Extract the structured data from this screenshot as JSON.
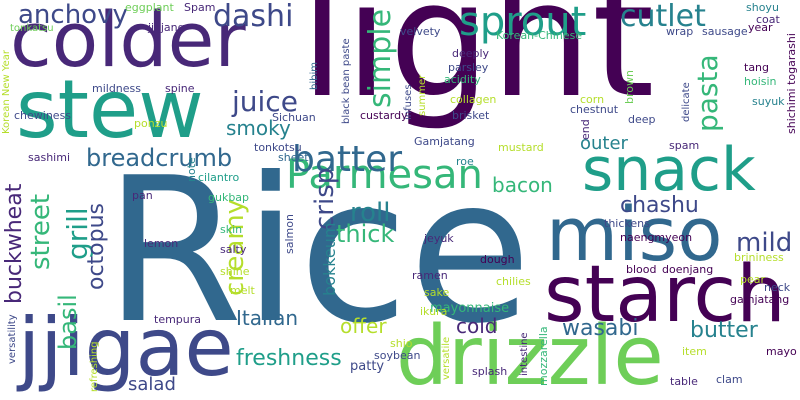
{
  "palette": {
    "purple_dark": "#440154",
    "indigo": "#482878",
    "blue": "#3e4989",
    "steel": "#31688e",
    "teal": "#26828e",
    "teal_green": "#1f9e89",
    "green": "#35b779",
    "lime": "#6ece58",
    "yellow_green": "#b5de2b",
    "yellow": "#fde725"
  },
  "words": [
    {
      "text": "Rice",
      "color": "#31688e"
    },
    {
      "text": "light",
      "color": "#440154"
    },
    {
      "text": "colder",
      "color": "#482878"
    },
    {
      "text": "stew",
      "color": "#1f9e89"
    },
    {
      "text": "jjigae",
      "color": "#3e4989"
    },
    {
      "text": "drizzle",
      "color": "#6ece58"
    },
    {
      "text": "starch",
      "color": "#440154"
    },
    {
      "text": "miso",
      "color": "#31688e"
    },
    {
      "text": "snack",
      "color": "#1f9e89"
    },
    {
      "text": "Parmesan",
      "color": "#35b779"
    },
    {
      "text": "sprout",
      "color": "#1f9e89"
    },
    {
      "text": "batter",
      "color": "#31688e"
    },
    {
      "text": "anchovy",
      "color": "#3e4989"
    },
    {
      "text": "dashi",
      "color": "#3e4989"
    },
    {
      "text": "cutlet",
      "color": "#26828e"
    },
    {
      "text": "breadcrumb",
      "color": "#31688e"
    },
    {
      "text": "juice",
      "color": "#3e4989"
    },
    {
      "text": "simple",
      "color": "#35b779"
    },
    {
      "text": "pasta",
      "color": "#35b779"
    },
    {
      "text": "smoky",
      "color": "#26828e"
    },
    {
      "text": "grill",
      "color": "#1f9e89"
    },
    {
      "text": "street",
      "color": "#35b779"
    },
    {
      "text": "buckwheat",
      "color": "#482878"
    },
    {
      "text": "basil",
      "color": "#35b779"
    },
    {
      "text": "octopus",
      "color": "#3e4989"
    },
    {
      "text": "creamy",
      "color": "#b5de2b"
    },
    {
      "text": "roll",
      "color": "#26828e"
    },
    {
      "text": "thick",
      "color": "#35b779"
    },
    {
      "text": "crisp",
      "color": "#3e4989"
    },
    {
      "text": "bacon",
      "color": "#35b779"
    },
    {
      "text": "chashu",
      "color": "#3e4989"
    },
    {
      "text": "mild",
      "color": "#3e4989"
    },
    {
      "text": "outer",
      "color": "#26828e"
    },
    {
      "text": "Italian",
      "color": "#31688e"
    },
    {
      "text": "offer",
      "color": "#b5de2b"
    },
    {
      "text": "cold",
      "color": "#482878"
    },
    {
      "text": "wasabi",
      "color": "#31688e"
    },
    {
      "text": "butter",
      "color": "#26828e"
    },
    {
      "text": "freshness",
      "color": "#1f9e89"
    },
    {
      "text": "salad",
      "color": "#3e4989"
    },
    {
      "text": "bokkeum",
      "color": "#26828e"
    },
    {
      "text": "mayonnaise",
      "color": "#35b779"
    },
    {
      "text": "patty",
      "color": "#3e4989"
    },
    {
      "text": "eggplant",
      "color": "#6ece58"
    },
    {
      "text": "Spam",
      "color": "#482878"
    },
    {
      "text": "jjajang",
      "color": "#482878"
    },
    {
      "text": "tonkatsu",
      "color": "#6ece58"
    },
    {
      "text": "velvety",
      "color": "#3e4989"
    },
    {
      "text": "Korean-Chinese",
      "color": "#35b779"
    },
    {
      "text": "shoyu",
      "color": "#26828e"
    },
    {
      "text": "coat",
      "color": "#482878"
    },
    {
      "text": "year",
      "color": "#440154"
    },
    {
      "text": "wrap",
      "color": "#3e4989"
    },
    {
      "text": "sausage",
      "color": "#3e4989"
    },
    {
      "text": "Korean New Year",
      "color": "#b5de2b"
    },
    {
      "text": "chewiness",
      "color": "#3e4989"
    },
    {
      "text": "mildness",
      "color": "#3e4989"
    },
    {
      "text": "spine",
      "color": "#482878"
    },
    {
      "text": "bibim",
      "color": "#31688e"
    },
    {
      "text": "black bean paste",
      "color": "#3e4989"
    },
    {
      "text": "infuses",
      "color": "#3e4989"
    },
    {
      "text": "summer",
      "color": "#b5de2b"
    },
    {
      "text": "deeply",
      "color": "#482878"
    },
    {
      "text": "parsley",
      "color": "#3e4989"
    },
    {
      "text": "acidity",
      "color": "#35b779"
    },
    {
      "text": "collagen",
      "color": "#b5de2b"
    },
    {
      "text": "custardy",
      "color": "#440154"
    },
    {
      "text": "brisket",
      "color": "#3e4989"
    },
    {
      "text": "corn",
      "color": "#b5de2b"
    },
    {
      "text": "chestnut",
      "color": "#3e4989"
    },
    {
      "text": "brown",
      "color": "#6ece58"
    },
    {
      "text": "tang",
      "color": "#440154"
    },
    {
      "text": "hoisin",
      "color": "#35b779"
    },
    {
      "text": "suyuk",
      "color": "#26828e"
    },
    {
      "text": "shichimi togarashi",
      "color": "#440154"
    },
    {
      "text": "delicate",
      "color": "#3e4989"
    },
    {
      "text": "deep",
      "color": "#3e4989"
    },
    {
      "text": "ponzu",
      "color": "#b5de2b"
    },
    {
      "text": "Sichuan",
      "color": "#3e4989"
    },
    {
      "text": "sashimi",
      "color": "#482878"
    },
    {
      "text": "Gamjatang",
      "color": "#3e4989"
    },
    {
      "text": "mustard",
      "color": "#b5de2b"
    },
    {
      "text": "end",
      "color": "#482878"
    },
    {
      "text": "spam",
      "color": "#482878"
    },
    {
      "text": "tonkotsu",
      "color": "#3e4989"
    },
    {
      "text": "sheet",
      "color": "#31688e"
    },
    {
      "text": "roe",
      "color": "#26828e"
    },
    {
      "text": "cilantro",
      "color": "#1f9e89"
    },
    {
      "text": "note",
      "color": "#26828e"
    },
    {
      "text": "gukbap",
      "color": "#35b779"
    },
    {
      "text": "thickens",
      "color": "#3e4989"
    },
    {
      "text": "naengmyeon",
      "color": "#440154"
    },
    {
      "text": "pan",
      "color": "#482878"
    },
    {
      "text": "skin",
      "color": "#35b779"
    },
    {
      "text": "jeyuk",
      "color": "#482878"
    },
    {
      "text": "pear",
      "color": "#b5de2b"
    },
    {
      "text": "neck",
      "color": "#3e4989"
    },
    {
      "text": "gamjatang",
      "color": "#440154"
    },
    {
      "text": "lemon",
      "color": "#482878"
    },
    {
      "text": "salty",
      "color": "#482878"
    },
    {
      "text": "shine",
      "color": "#b5de2b"
    },
    {
      "text": "salmon",
      "color": "#3e4989"
    },
    {
      "text": "dough",
      "color": "#440154"
    },
    {
      "text": "ramen",
      "color": "#482878"
    },
    {
      "text": "chilies",
      "color": "#b5de2b"
    },
    {
      "text": "blood",
      "color": "#440154"
    },
    {
      "text": "doenjang",
      "color": "#440154"
    },
    {
      "text": "brininess",
      "color": "#b5de2b"
    },
    {
      "text": "melt",
      "color": "#b5de2b"
    },
    {
      "text": "sake",
      "color": "#b5de2b"
    },
    {
      "text": "versatility",
      "color": "#3e4989"
    },
    {
      "text": "tempura",
      "color": "#482878"
    },
    {
      "text": "ikura",
      "color": "#b5de2b"
    },
    {
      "text": "shio",
      "color": "#b5de2b"
    },
    {
      "text": "refreshing",
      "color": "#b5de2b"
    },
    {
      "text": "soybean",
      "color": "#3e4989"
    },
    {
      "text": "versatile",
      "color": "#b5de2b"
    },
    {
      "text": "intestine",
      "color": "#482878"
    },
    {
      "text": "mozzarella",
      "color": "#35b779"
    },
    {
      "text": "item",
      "color": "#b5de2b"
    },
    {
      "text": "mayo",
      "color": "#440154"
    },
    {
      "text": "splash",
      "color": "#482878"
    },
    {
      "text": "clam",
      "color": "#3e4989"
    },
    {
      "text": "table",
      "color": "#482878"
    }
  ]
}
